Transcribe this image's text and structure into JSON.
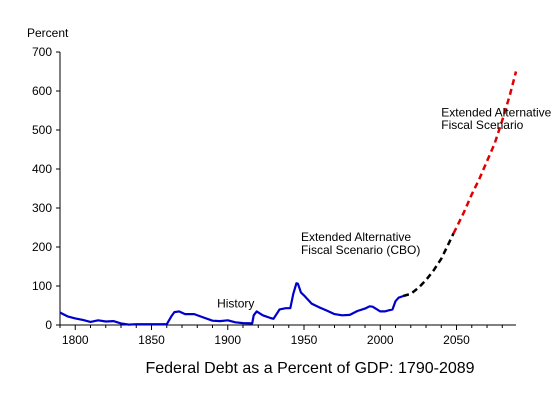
{
  "chart_data": {
    "type": "line",
    "title": "Federal Debt as a Percent of GDP: 1790-2089",
    "ylabel": "Percent",
    "xlabel": "",
    "xlim": [
      1790,
      2089
    ],
    "ylim": [
      0,
      700
    ],
    "x_ticks": [
      1800,
      1850,
      1900,
      1950,
      2000,
      2050
    ],
    "y_ticks": [
      0,
      100,
      200,
      300,
      400,
      500,
      600,
      700
    ],
    "grid": false,
    "series": [
      {
        "name": "History",
        "style": "solid",
        "color": "#0000cc",
        "points": [
          [
            1790,
            32
          ],
          [
            1792,
            28
          ],
          [
            1795,
            22
          ],
          [
            1800,
            17
          ],
          [
            1805,
            13
          ],
          [
            1810,
            8
          ],
          [
            1815,
            12
          ],
          [
            1820,
            9
          ],
          [
            1825,
            10
          ],
          [
            1830,
            4
          ],
          [
            1835,
            1
          ],
          [
            1840,
            2
          ],
          [
            1845,
            2
          ],
          [
            1850,
            2
          ],
          [
            1855,
            2
          ],
          [
            1860,
            2
          ],
          [
            1863,
            22
          ],
          [
            1865,
            33
          ],
          [
            1868,
            35
          ],
          [
            1872,
            28
          ],
          [
            1878,
            28
          ],
          [
            1885,
            18
          ],
          [
            1890,
            11
          ],
          [
            1895,
            10
          ],
          [
            1900,
            12
          ],
          [
            1905,
            7
          ],
          [
            1910,
            5
          ],
          [
            1916,
            4
          ],
          [
            1917,
            25
          ],
          [
            1919,
            35
          ],
          [
            1923,
            25
          ],
          [
            1928,
            18
          ],
          [
            1930,
            16
          ],
          [
            1934,
            40
          ],
          [
            1938,
            43
          ],
          [
            1941,
            43
          ],
          [
            1943,
            80
          ],
          [
            1945,
            107
          ],
          [
            1946,
            106
          ],
          [
            1948,
            83
          ],
          [
            1950,
            76
          ],
          [
            1955,
            55
          ],
          [
            1960,
            45
          ],
          [
            1965,
            37
          ],
          [
            1970,
            28
          ],
          [
            1975,
            25
          ],
          [
            1980,
            26
          ],
          [
            1985,
            36
          ],
          [
            1990,
            42
          ],
          [
            1993,
            48
          ],
          [
            1995,
            47
          ],
          [
            2000,
            35
          ],
          [
            2003,
            35
          ],
          [
            2005,
            37
          ],
          [
            2008,
            40
          ],
          [
            2010,
            61
          ],
          [
            2012,
            70
          ],
          [
            2015,
            74
          ]
        ]
      },
      {
        "name": "Extended Alternative Fiscal Scenario (CBO)",
        "style": "dashed",
        "color": "#000000",
        "points": [
          [
            2015,
            74
          ],
          [
            2020,
            80
          ],
          [
            2025,
            95
          ],
          [
            2030,
            115
          ],
          [
            2035,
            140
          ],
          [
            2040,
            170
          ],
          [
            2045,
            210
          ],
          [
            2048,
            235
          ]
        ]
      },
      {
        "name": "Extended Alternative Fiscal Scenario",
        "style": "dashed",
        "color": "#e00000",
        "points": [
          [
            2048,
            235
          ],
          [
            2050,
            250
          ],
          [
            2055,
            290
          ],
          [
            2060,
            335
          ],
          [
            2065,
            375
          ],
          [
            2070,
            420
          ],
          [
            2075,
            465
          ],
          [
            2080,
            525
          ],
          [
            2085,
            590
          ],
          [
            2089,
            650
          ]
        ]
      }
    ],
    "annotations": [
      {
        "text": "History",
        "x": 1893,
        "y": 45
      },
      {
        "text": "Extended Alternative",
        "x": 1948,
        "y": 215
      },
      {
        "text": "Fiscal Scenario (CBO)",
        "x": 1948,
        "y": 182
      },
      {
        "text": "Extended Alternative",
        "x": 2040,
        "y": 535
      },
      {
        "text": "Fiscal Scenario",
        "x": 2040,
        "y": 502
      }
    ]
  }
}
